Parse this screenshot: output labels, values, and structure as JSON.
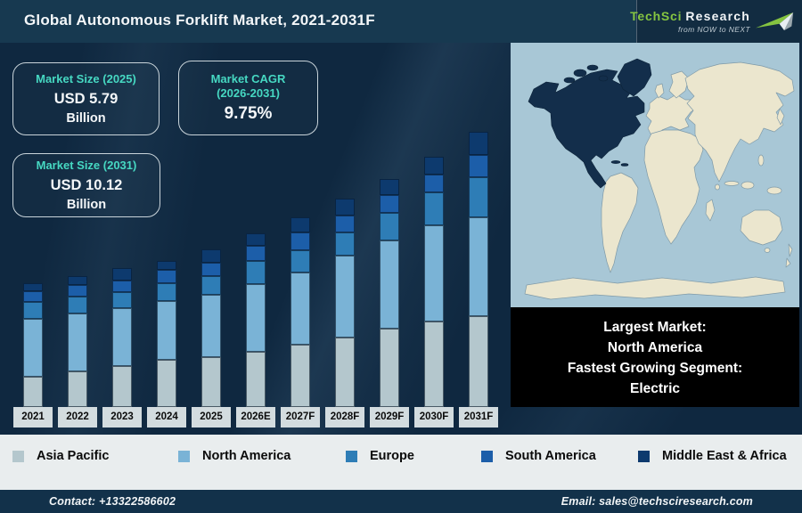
{
  "header": {
    "title": "Global Autonomous Forklift Market, 2021-2031F",
    "logo": {
      "brand_primary": "TechSci",
      "brand_secondary": "Research",
      "tagline": "from NOW to NEXT",
      "brand_green": "#85c441"
    }
  },
  "stats": [
    {
      "label": "Market Size (2025)",
      "value": "USD 5.79",
      "unit": "Billion"
    },
    {
      "label_line1": "Market CAGR",
      "label_line2": "(2026-2031)",
      "value": "9.75%"
    },
    {
      "label": "Market Size (2031)",
      "value": "USD 10.12",
      "unit": "Billion"
    }
  ],
  "chart_data": {
    "type": "bar",
    "stacked": true,
    "title": "Global Autonomous Forklift Market, 2021-2031F",
    "unit": "USD Billion",
    "legend_position": "bottom",
    "categories": [
      "2021",
      "2022",
      "2023",
      "2024",
      "2025",
      "2026E",
      "2027F",
      "2028F",
      "2029F",
      "2030F",
      "2031F"
    ],
    "series": [
      {
        "name": "Asia Pacific",
        "color": "#b4c7cd",
        "values": [
          1.13,
          1.3,
          1.51,
          1.75,
          1.85,
          2.02,
          2.28,
          2.55,
          2.9,
          3.16,
          3.33
        ]
      },
      {
        "name": "North America",
        "color": "#7ab3d6",
        "values": [
          2.13,
          2.13,
          2.12,
          2.16,
          2.3,
          2.48,
          2.67,
          3.02,
          3.25,
          3.54,
          3.65
        ]
      },
      {
        "name": "Europe",
        "color": "#2e7db6",
        "values": [
          0.62,
          0.62,
          0.58,
          0.65,
          0.69,
          0.84,
          0.82,
          0.86,
          1.0,
          1.21,
          1.48
        ]
      },
      {
        "name": "South America",
        "color": "#1c5ea9",
        "values": [
          0.38,
          0.41,
          0.41,
          0.48,
          0.48,
          0.56,
          0.64,
          0.61,
          0.66,
          0.67,
          0.82
        ]
      },
      {
        "name": "Middle East & Africa",
        "color": "#0d3a6e",
        "values": [
          0.31,
          0.34,
          0.45,
          0.34,
          0.48,
          0.45,
          0.57,
          0.61,
          0.59,
          0.64,
          0.85
        ]
      }
    ],
    "totals": [
      4.57,
      4.8,
      5.07,
      5.38,
      5.79,
      6.35,
      6.97,
      7.65,
      8.4,
      9.22,
      10.12
    ],
    "labeled_anchors": {
      "market_size_2025": "USD 5.79 Billion",
      "market_size_2031": "USD 10.12 Billion",
      "cagr_2026_2031": "9.75%"
    }
  },
  "map_panel": {
    "highlight_region": "North America",
    "highlight_color": "#132e4b",
    "ocean_color": "#a8c7d6",
    "land_color": "#ebe6ce"
  },
  "callout": {
    "line1": "Largest Market:",
    "line2": "North America",
    "line3": "Fastest Growing Segment:",
    "line4": "Electric"
  },
  "footer": {
    "contact": "Contact: +13322586602",
    "email": "Email: sales@techsciresearch.com"
  }
}
